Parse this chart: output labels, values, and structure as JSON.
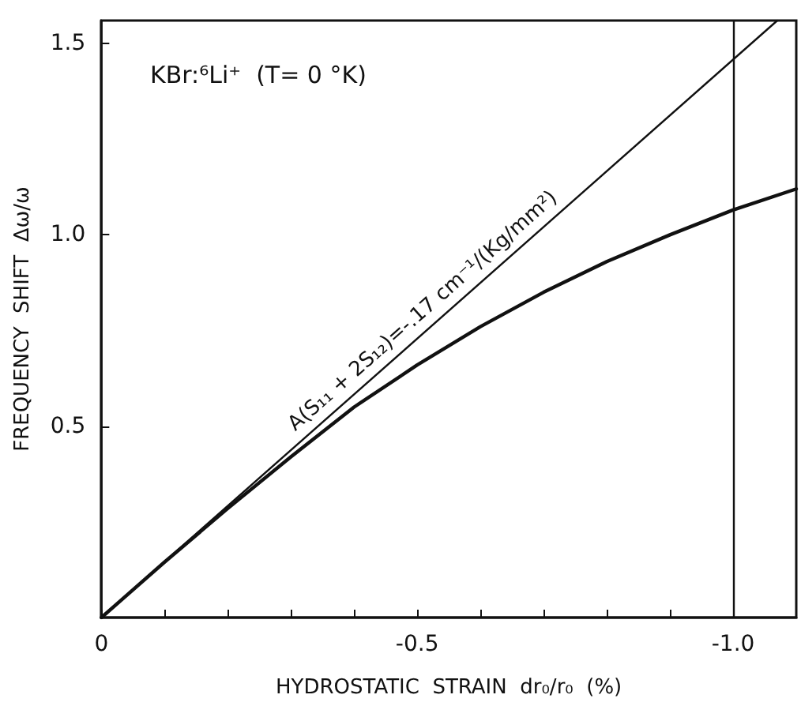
{
  "chart_data": {
    "type": "line",
    "xlabel": "HYDROSTATIC  STRAIN  dr₀/r₀  (%)",
    "ylabel": "FREQUENCY  SHIFT  Δω/ω",
    "annotations": [
      "KBr:⁶Li⁺  (T= 0 °K)",
      {
        "text": "A(S₁₁ + 2S₁₂)=-.17 cm⁻¹/(Kg/mm²)",
        "x": -0.52,
        "y": 0.78
      }
    ],
    "series": [
      {
        "color": "#111111",
        "x": [
          0,
          -1.07
        ],
        "values": [
          0,
          1.56
        ]
      },
      {
        "color": "#111111",
        "x": [
          0,
          -0.1,
          -0.2,
          -0.3,
          -0.4,
          -0.5,
          -0.6,
          -0.7,
          -0.8,
          -0.9,
          -1.0,
          -1.1
        ],
        "values": [
          0,
          0.145,
          0.285,
          0.42,
          0.55,
          0.66,
          0.76,
          0.85,
          0.93,
          1.0,
          1.065,
          1.12
        ]
      }
    ],
    "xlim": [
      0,
      -1.1
    ],
    "xticks": [
      0,
      {
        "value": -0.1,
        "label": null
      },
      {
        "value": -0.2,
        "label": null
      },
      {
        "value": -0.3,
        "label": null
      },
      {
        "value": -0.4,
        "label": null
      },
      -0.5,
      {
        "value": -0.6,
        "label": null
      },
      {
        "value": -0.7,
        "label": null
      },
      {
        "value": -0.8,
        "label": null
      },
      {
        "value": -0.9,
        "label": null
      },
      {
        "value": -1,
        "label": "-1.0"
      }
    ],
    "ylim": [
      0,
      1.56
    ],
    "yticks": [
      0.5,
      {
        "value": 1,
        "label": "1.0"
      },
      1.5
    ],
    "ref_lines": [
      {
        "axis": "x",
        "value": -1
      }
    ],
    "grid": false,
    "marker": "none",
    "line_style": "solid"
  }
}
